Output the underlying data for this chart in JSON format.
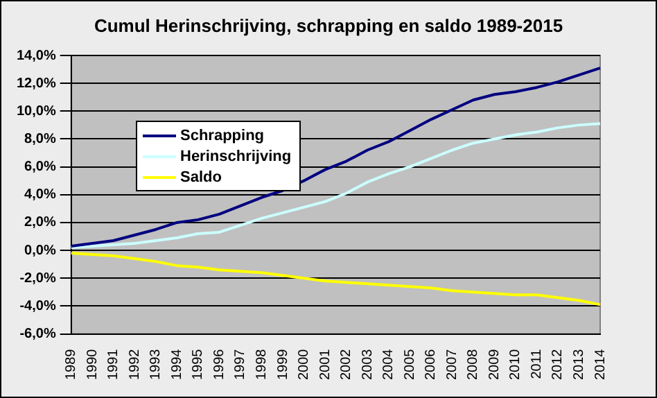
{
  "chart_data": {
    "type": "line",
    "title": "Cumul Herinschrijving, schrapping en saldo 1989-2015",
    "categories": [
      "1989",
      "1990",
      "1991",
      "1992",
      "1993",
      "1994",
      "1995",
      "1996",
      "1997",
      "1998",
      "1999",
      "2000",
      "2001",
      "2002",
      "2003",
      "2004",
      "2005",
      "2006",
      "2007",
      "2008",
      "2009",
      "2010",
      "2011",
      "2012",
      "2013",
      "2014"
    ],
    "series": [
      {
        "name": "Schrapping",
        "color": "#000080",
        "values": [
          0.3,
          0.5,
          0.7,
          1.1,
          1.5,
          2.0,
          2.2,
          2.6,
          3.2,
          3.8,
          4.3,
          5.0,
          5.8,
          6.4,
          7.2,
          7.8,
          8.6,
          9.4,
          10.1,
          10.8,
          11.2,
          11.4,
          11.7,
          12.1,
          12.6,
          13.1
        ]
      },
      {
        "name": "Herinschrijving",
        "color": "#ccffff",
        "values": [
          0.2,
          0.3,
          0.4,
          0.5,
          0.7,
          0.9,
          1.2,
          1.3,
          1.8,
          2.3,
          2.7,
          3.1,
          3.5,
          4.1,
          4.9,
          5.5,
          6.0,
          6.6,
          7.2,
          7.7,
          8.0,
          8.3,
          8.5,
          8.8,
          9.0,
          9.1
        ]
      },
      {
        "name": "Saldo",
        "color": "#ffff00",
        "values": [
          -0.2,
          -0.3,
          -0.4,
          -0.6,
          -0.8,
          -1.1,
          -1.2,
          -1.4,
          -1.5,
          -1.6,
          -1.8,
          -2.0,
          -2.2,
          -2.3,
          -2.4,
          -2.5,
          -2.6,
          -2.7,
          -2.9,
          -3.0,
          -3.1,
          -3.2,
          -3.2,
          -3.4,
          -3.6,
          -3.9
        ]
      }
    ],
    "ylim": [
      -6,
      14
    ],
    "yticks": [
      {
        "value": -6,
        "label": "-6,0%"
      },
      {
        "value": -4,
        "label": "-4,0%"
      },
      {
        "value": -2,
        "label": "-2,0%"
      },
      {
        "value": 0,
        "label": "0,0%"
      },
      {
        "value": 2,
        "label": "2,0%"
      },
      {
        "value": 4,
        "label": "4,0%"
      },
      {
        "value": 6,
        "label": "6,0%"
      },
      {
        "value": 8,
        "label": "8,0%"
      },
      {
        "value": 10,
        "label": "10,0%"
      },
      {
        "value": 12,
        "label": "12,0%"
      },
      {
        "value": 14,
        "label": "14,0%"
      }
    ],
    "grid": "y",
    "legend": "top left",
    "marker": "none",
    "line_style": "solid"
  }
}
